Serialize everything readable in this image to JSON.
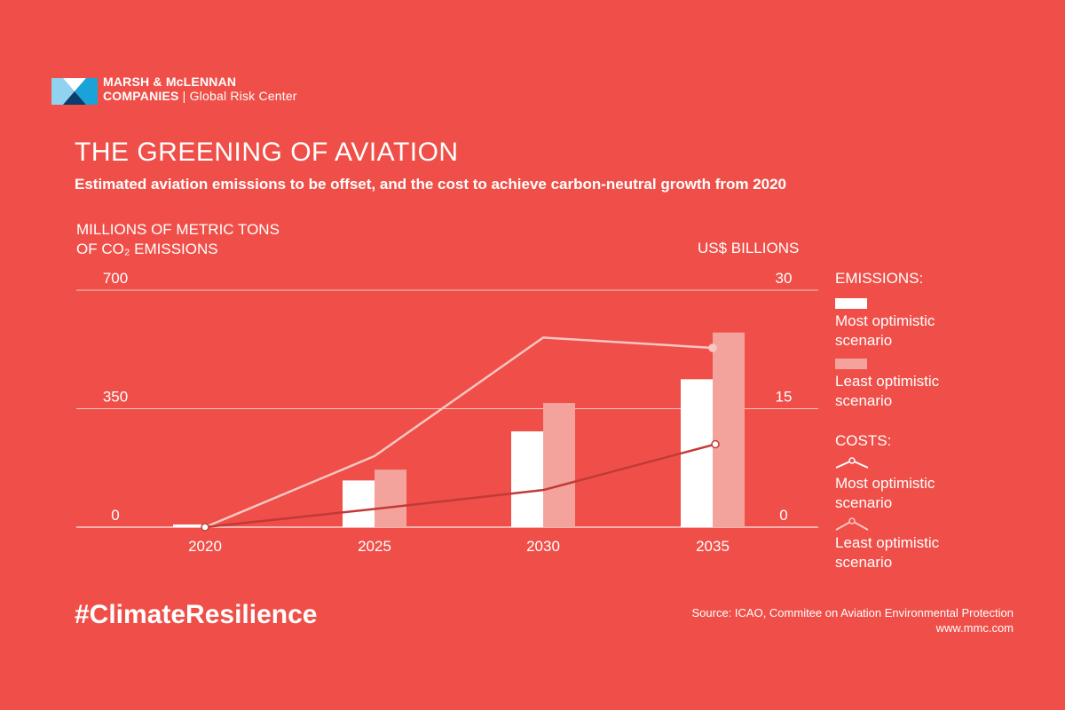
{
  "brand": {
    "name_line1": "MARSH & McLENNAN",
    "name_line2": "COMPANIES",
    "name_line2_sub": "| Global Risk Center"
  },
  "title": "THE GREENING OF AVIATION",
  "subtitle": "Estimated aviation emissions to be offset, and the cost to achieve carbon-neutral growth from 2020",
  "axis_labels": {
    "left_line1": "MILLIONS OF METRIC TONS",
    "left_line2": "OF CO₂ EMISSIONS",
    "right": "US$ BILLIONS"
  },
  "legend": {
    "emissions_head": "EMISSIONS:",
    "costs_head": "COSTS:",
    "most_line1": "Most optimistic",
    "least_line1": "Least optimistic",
    "line2": "scenario"
  },
  "hashtag": "#ClimateResilience",
  "source": "Source: ICAO, Commitee on Aviation Environmental Protection",
  "url": "www.mmc.com",
  "colors": {
    "background": "#ef4f48",
    "most_optimistic": "#ffffff",
    "least_optimistic": "#f4a29c",
    "cost_most_line": "#c23a36",
    "cost_least_line": "#f7c7c2"
  },
  "chart_data": {
    "type": "bar",
    "categories": [
      "2020",
      "2025",
      "2030",
      "2035"
    ],
    "left_axis": {
      "ticks": [
        0,
        350,
        700
      ],
      "ylim": [
        0,
        700
      ]
    },
    "right_axis": {
      "ticks": [
        0,
        15,
        30
      ],
      "ylim": [
        0,
        30
      ]
    },
    "series": [
      {
        "name": "Emissions – Most optimistic scenario",
        "axis": "left",
        "kind": "bar",
        "values": [
          8,
          138,
          283,
          437
        ]
      },
      {
        "name": "Emissions – Least optimistic scenario",
        "axis": "left",
        "kind": "bar",
        "values": [
          0,
          170,
          367,
          575
        ]
      },
      {
        "name": "Costs – Most optimistic scenario",
        "axis": "right",
        "kind": "line",
        "values": [
          0,
          2.3,
          4.7,
          10.5
        ]
      },
      {
        "name": "Costs – Least optimistic scenario",
        "axis": "right",
        "kind": "line",
        "values": [
          0,
          9,
          24,
          22.7
        ]
      }
    ]
  }
}
